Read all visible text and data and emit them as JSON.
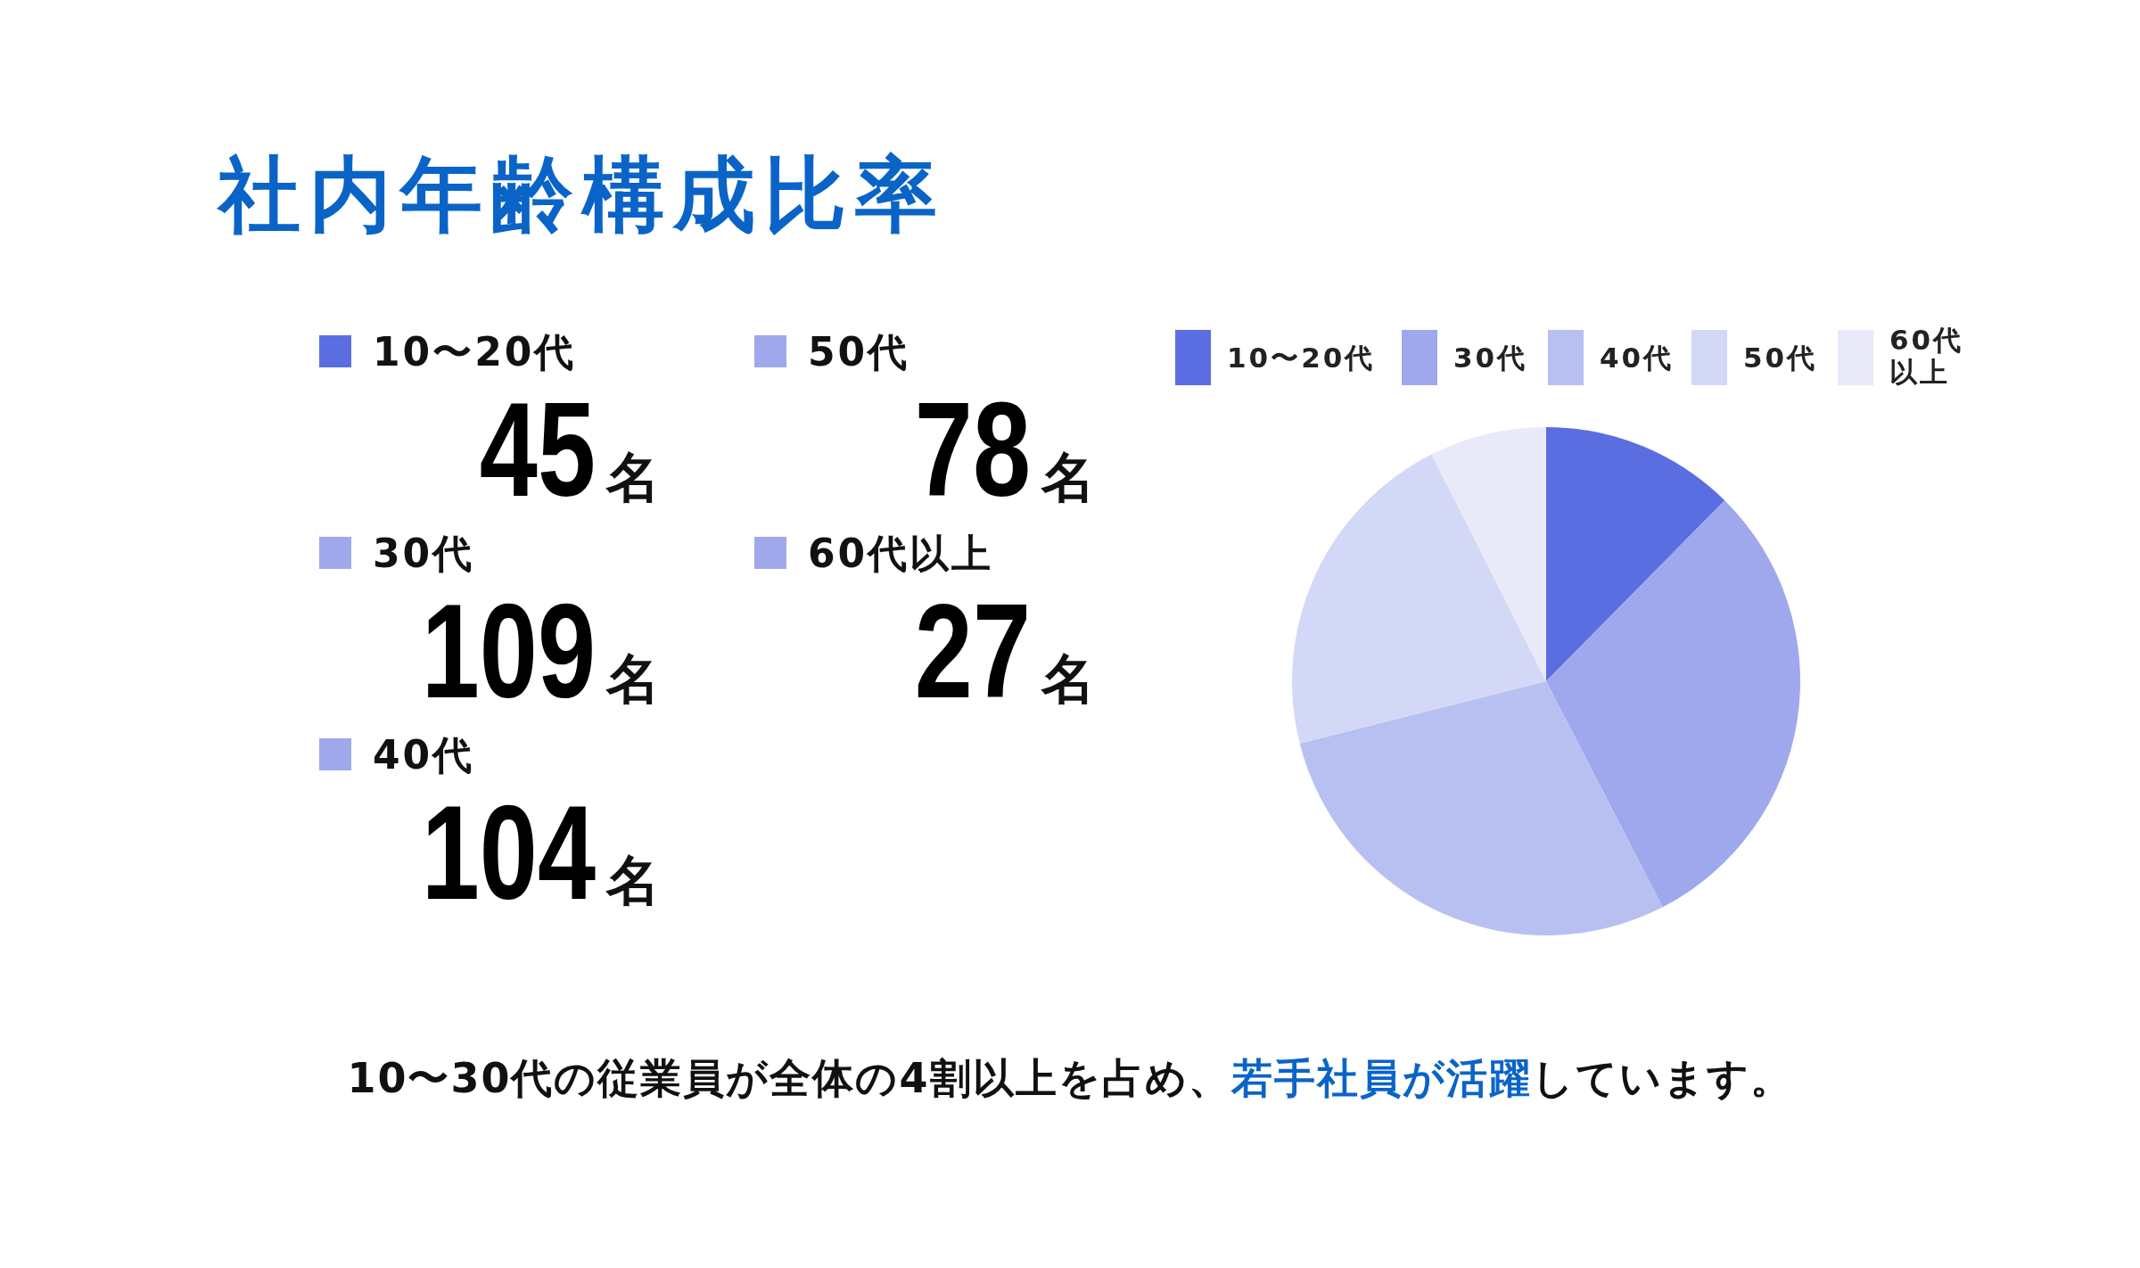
{
  "chart_data": [
    {
      "type": "other",
      "title": "社内年齢構成比率",
      "annotations": [
        "10〜20代",
        "45名",
        "30代",
        "109名",
        "40代",
        "104名",
        "50代",
        "78名",
        "60代以上",
        "27名"
      ],
      "colors": [
        "#5b6ee1",
        "#a0a8ec",
        "#a0a8ec",
        "#a0a8ec",
        "#a0a8ec"
      ]
    },
    {
      "type": "pie",
      "categories": [
        "10〜20代",
        "30代",
        "40代",
        "50代",
        "60代以上"
      ],
      "values": [
        12.4,
        30.02,
        28.65,
        21.49,
        7.44
      ],
      "colors": [
        "#5b6ee1",
        "#9fa8ec",
        "#b8c0f2",
        "#d3d8f6",
        "#e8eafa"
      ],
      "legend": "top",
      "annotations": [
        "10〜30代の従業員が全体の4割以上を占め、",
        "若手社員が活躍",
        "しています。"
      ]
    }
  ]
}
